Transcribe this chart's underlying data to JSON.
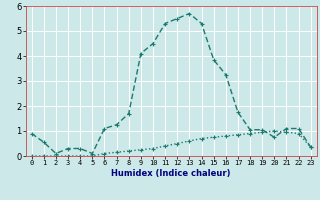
{
  "xlabel": "Humidex (Indice chaleur)",
  "x": [
    0,
    1,
    2,
    3,
    4,
    5,
    6,
    7,
    8,
    9,
    10,
    11,
    12,
    13,
    14,
    15,
    16,
    17,
    18,
    19,
    20,
    21,
    22,
    23
  ],
  "line1_y": [
    0.9,
    0.55,
    0.1,
    0.3,
    0.3,
    0.1,
    1.1,
    1.25,
    1.7,
    4.1,
    4.5,
    5.3,
    5.5,
    5.7,
    5.3,
    3.85,
    3.25,
    1.75,
    1.05,
    1.05,
    0.75,
    1.1,
    1.1,
    0.35
  ],
  "line2_y": [
    0.0,
    0.0,
    0.0,
    0.0,
    0.0,
    0.0,
    0.1,
    0.15,
    0.2,
    0.25,
    0.3,
    0.4,
    0.5,
    0.6,
    0.7,
    0.75,
    0.8,
    0.85,
    0.9,
    0.95,
    1.0,
    0.95,
    0.9,
    0.35
  ],
  "line_color": "#1a7a6e",
  "bg_color": "#cce8e8",
  "grid_color": "#ffffff",
  "spine_color": "#aaaaaa",
  "ylim": [
    0,
    6
  ],
  "xlim": [
    -0.5,
    23.5
  ],
  "yticks": [
    0,
    1,
    2,
    3,
    4,
    5,
    6
  ],
  "xtick_fontsize": 5,
  "ytick_fontsize": 6,
  "xlabel_fontsize": 6,
  "linewidth": 1.0,
  "markersize": 3
}
